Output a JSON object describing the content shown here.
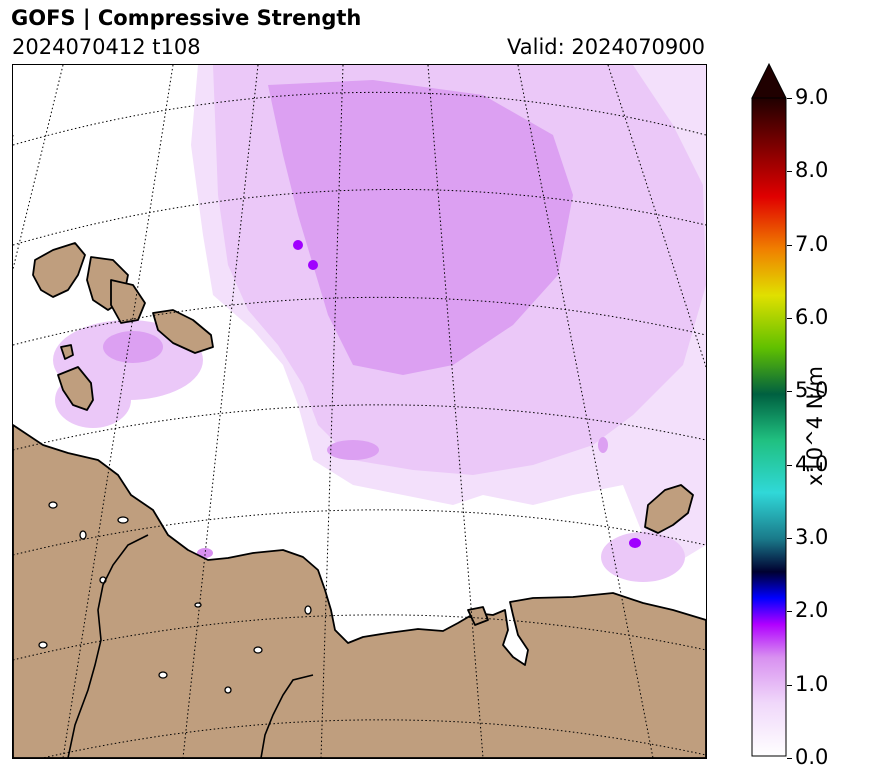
{
  "header": {
    "title": "GOFS  |  Compressive Strength",
    "run_label": "2024070412 t108",
    "valid_label": "Valid: 2024070900"
  },
  "colorbar": {
    "unit_label": "x10^4 N/m",
    "ticks": [
      "0.0",
      "1.0",
      "2.0",
      "3.0",
      "4.0",
      "5.0",
      "6.0",
      "7.0",
      "8.0",
      "9.0"
    ],
    "range": [
      0,
      9
    ],
    "extend": "max",
    "colors": [
      "#ffffff",
      "#f0d8fa",
      "#d890f0",
      "#b000ff",
      "#0000ff",
      "#000030",
      "#30d8d8",
      "#00a060",
      "#60c000",
      "#e0e000",
      "#f08000",
      "#e00000",
      "#300000"
    ]
  },
  "map": {
    "land_color": "#bf9e7e",
    "coast_color": "#000000",
    "graticule_style": "dotted",
    "ice_colors": {
      "light": "#f3e0fb",
      "medium": "#ebc8f8",
      "strong": "#dca0f2",
      "peak": "#a000ff"
    }
  }
}
